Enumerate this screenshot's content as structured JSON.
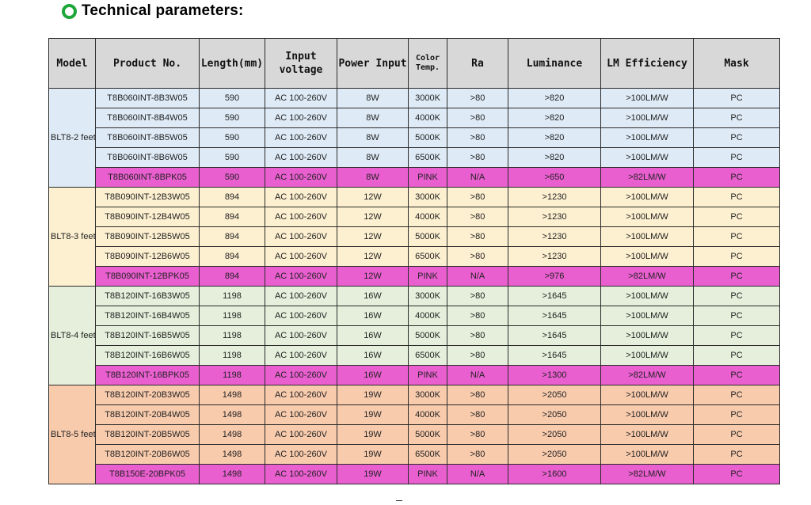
{
  "heading": {
    "icon": "circle-bullet-icon",
    "icon_color": "#1fa63a",
    "title": "Technical parameters:"
  },
  "table": {
    "headers": {
      "model": "Model",
      "product_no": "Product No.",
      "length": "Length(mm)",
      "input_voltage_1": "Input",
      "input_voltage_2": "voltage",
      "power_input": "Power Input",
      "color_temp_1": "Color",
      "color_temp_2": "Temp.",
      "ra": "Ra",
      "luminance": "Luminance",
      "lm_efficiency": "LM Efficiency",
      "mask": "Mask"
    },
    "colors": {
      "header_bg": "#d8d8d8",
      "group_2ft": "#deebf7",
      "group_3ft": "#fdf0d0",
      "group_4ft": "#e5efdb",
      "group_5ft": "#f8cbad",
      "pink_row": "#ea5fd0"
    },
    "groups": [
      {
        "model": "BLT8-2 feet",
        "rows": [
          {
            "product_no": "T8B060INT-8B3W05",
            "length": "590",
            "voltage": "AC 100-260V",
            "power": "8W",
            "color_temp": "3000K",
            "ra": ">80",
            "luminance": ">820",
            "efficiency": ">100LM/W",
            "mask": "PC"
          },
          {
            "product_no": "T8B060INT-8B4W05",
            "length": "590",
            "voltage": "AC 100-260V",
            "power": "8W",
            "color_temp": "4000K",
            "ra": ">80",
            "luminance": ">820",
            "efficiency": ">100LM/W",
            "mask": "PC"
          },
          {
            "product_no": "T8B060INT-8B5W05",
            "length": "590",
            "voltage": "AC 100-260V",
            "power": "8W",
            "color_temp": "5000K",
            "ra": ">80",
            "luminance": ">820",
            "efficiency": ">100LM/W",
            "mask": "PC"
          },
          {
            "product_no": "T8B060INT-8B6W05",
            "length": "590",
            "voltage": "AC 100-260V",
            "power": "8W",
            "color_temp": "6500K",
            "ra": ">80",
            "luminance": ">820",
            "efficiency": ">100LM/W",
            "mask": "PC"
          },
          {
            "product_no": "T8B060INT-8BPK05",
            "length": "590",
            "voltage": "AC 100-260V",
            "power": "8W",
            "color_temp": "PINK",
            "ra": "N/A",
            "luminance": ">650",
            "efficiency": ">82LM/W",
            "mask": "PC",
            "pink": true
          }
        ]
      },
      {
        "model": "BLT8-3 feet",
        "rows": [
          {
            "product_no": "T8B090INT-12B3W05",
            "length": "894",
            "voltage": "AC 100-260V",
            "power": "12W",
            "color_temp": "3000K",
            "ra": ">80",
            "luminance": ">1230",
            "efficiency": ">100LM/W",
            "mask": "PC"
          },
          {
            "product_no": "T8B090INT-12B4W05",
            "length": "894",
            "voltage": "AC 100-260V",
            "power": "12W",
            "color_temp": "4000K",
            "ra": ">80",
            "luminance": ">1230",
            "efficiency": ">100LM/W",
            "mask": "PC"
          },
          {
            "product_no": "T8B090INT-12B5W05",
            "length": "894",
            "voltage": "AC 100-260V",
            "power": "12W",
            "color_temp": "5000K",
            "ra": ">80",
            "luminance": ">1230",
            "efficiency": ">100LM/W",
            "mask": "PC"
          },
          {
            "product_no": "T8B090INT-12B6W05",
            "length": "894",
            "voltage": "AC 100-260V",
            "power": "12W",
            "color_temp": "6500K",
            "ra": ">80",
            "luminance": ">1230",
            "efficiency": ">100LM/W",
            "mask": "PC"
          },
          {
            "product_no": "T8B090INT-12BPK05",
            "length": "894",
            "voltage": "AC 100-260V",
            "power": "12W",
            "color_temp": "PINK",
            "ra": "N/A",
            "luminance": ">976",
            "efficiency": ">82LM/W",
            "mask": "PC",
            "pink": true
          }
        ]
      },
      {
        "model": "BLT8-4 feet",
        "rows": [
          {
            "product_no": "T8B120INT-16B3W05",
            "length": "1198",
            "voltage": "AC 100-260V",
            "power": "16W",
            "color_temp": "3000K",
            "ra": ">80",
            "luminance": ">1645",
            "efficiency": ">100LM/W",
            "mask": "PC"
          },
          {
            "product_no": "T8B120INT-16B4W05",
            "length": "1198",
            "voltage": "AC 100-260V",
            "power": "16W",
            "color_temp": "4000K",
            "ra": ">80",
            "luminance": ">1645",
            "efficiency": ">100LM/W",
            "mask": "PC"
          },
          {
            "product_no": "T8B120INT-16B5W05",
            "length": "1198",
            "voltage": "AC 100-260V",
            "power": "16W",
            "color_temp": "5000K",
            "ra": ">80",
            "luminance": ">1645",
            "efficiency": ">100LM/W",
            "mask": "PC"
          },
          {
            "product_no": "T8B120INT-16B6W05",
            "length": "1198",
            "voltage": "AC 100-260V",
            "power": "16W",
            "color_temp": "6500K",
            "ra": ">80",
            "luminance": ">1645",
            "efficiency": ">100LM/W",
            "mask": "PC"
          },
          {
            "product_no": "T8B120INT-16BPK05",
            "length": "1198",
            "voltage": "AC 100-260V",
            "power": "16W",
            "color_temp": "PINK",
            "ra": "N/A",
            "luminance": ">1300",
            "efficiency": ">82LM/W",
            "mask": "PC",
            "pink": true
          }
        ]
      },
      {
        "model": "BLT8-5 feet",
        "rows": [
          {
            "product_no": "T8B120INT-20B3W05",
            "length": "1498",
            "voltage": "AC 100-260V",
            "power": "19W",
            "color_temp": "3000K",
            "ra": ">80",
            "luminance": ">2050",
            "efficiency": ">100LM/W",
            "mask": "PC"
          },
          {
            "product_no": "T8B120INT-20B4W05",
            "length": "1498",
            "voltage": "AC 100-260V",
            "power": "19W",
            "color_temp": "4000K",
            "ra": ">80",
            "luminance": ">2050",
            "efficiency": ">100LM/W",
            "mask": "PC"
          },
          {
            "product_no": "T8B120INT-20B5W05",
            "length": "1498",
            "voltage": "AC 100-260V",
            "power": "19W",
            "color_temp": "5000K",
            "ra": ">80",
            "luminance": ">2050",
            "efficiency": ">100LM/W",
            "mask": "PC"
          },
          {
            "product_no": "T8B120INT-20B6W05",
            "length": "1498",
            "voltage": "AC 100-260V",
            "power": "19W",
            "color_temp": "6500K",
            "ra": ">80",
            "luminance": ">2050",
            "efficiency": ">100LM/W",
            "mask": "PC"
          },
          {
            "product_no": "T8B150E-20BPK05",
            "length": "1498",
            "voltage": "AC 100-260V",
            "power": "19W",
            "color_temp": "PINK",
            "ra": "N/A",
            "luminance": ">1600",
            "efficiency": ">82LM/W",
            "mask": "PC",
            "pink": true
          }
        ]
      }
    ]
  }
}
